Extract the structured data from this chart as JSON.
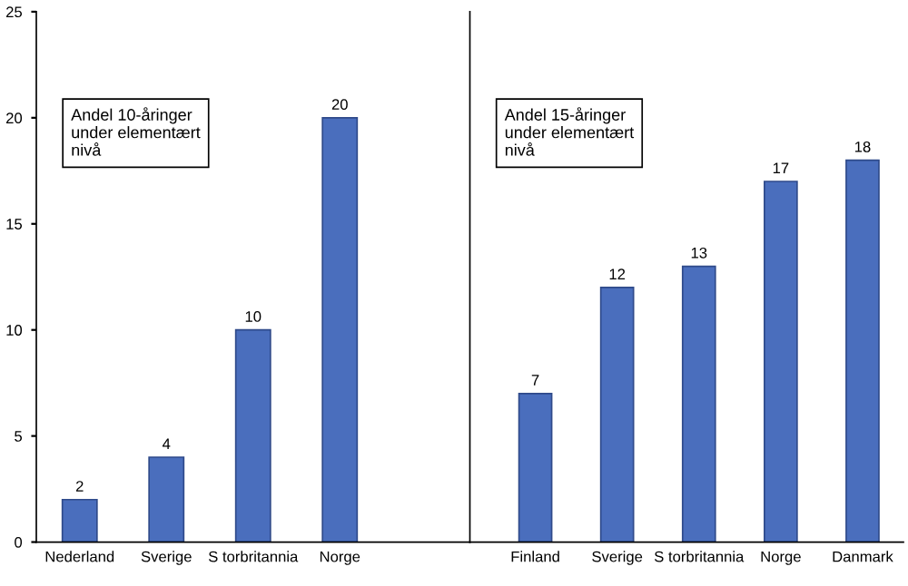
{
  "chart_data": [
    {
      "type": "bar",
      "categories": [
        "Nederland",
        "Sverige",
        "S torbritannia",
        "Norge",
        null
      ],
      "values": [
        2,
        4,
        10,
        20,
        null
      ],
      "color": "#4a6ebd",
      "ylim": [
        0,
        25
      ],
      "yticks": [
        0,
        5,
        10,
        15,
        20,
        25
      ],
      "data_labels": true,
      "grid": false,
      "legend": false,
      "annotations": [
        "Andel 10-åringer\nunder elementært\nnivå"
      ]
    },
    {
      "type": "bar",
      "categories": [
        "Finland",
        "Sverige",
        "S torbritannia",
        "Norge",
        "Danmark"
      ],
      "values": [
        7,
        12,
        13,
        17,
        18
      ],
      "color": "#4a6ebd",
      "ylim": [
        0,
        25
      ],
      "yticks": [
        0,
        5,
        10,
        15,
        20,
        25
      ],
      "tick_labels": "x",
      "data_labels": true,
      "grid": false,
      "legend": false,
      "annotations": [
        "Andel 15-åringer\nunder elementært\nnivå"
      ]
    }
  ]
}
